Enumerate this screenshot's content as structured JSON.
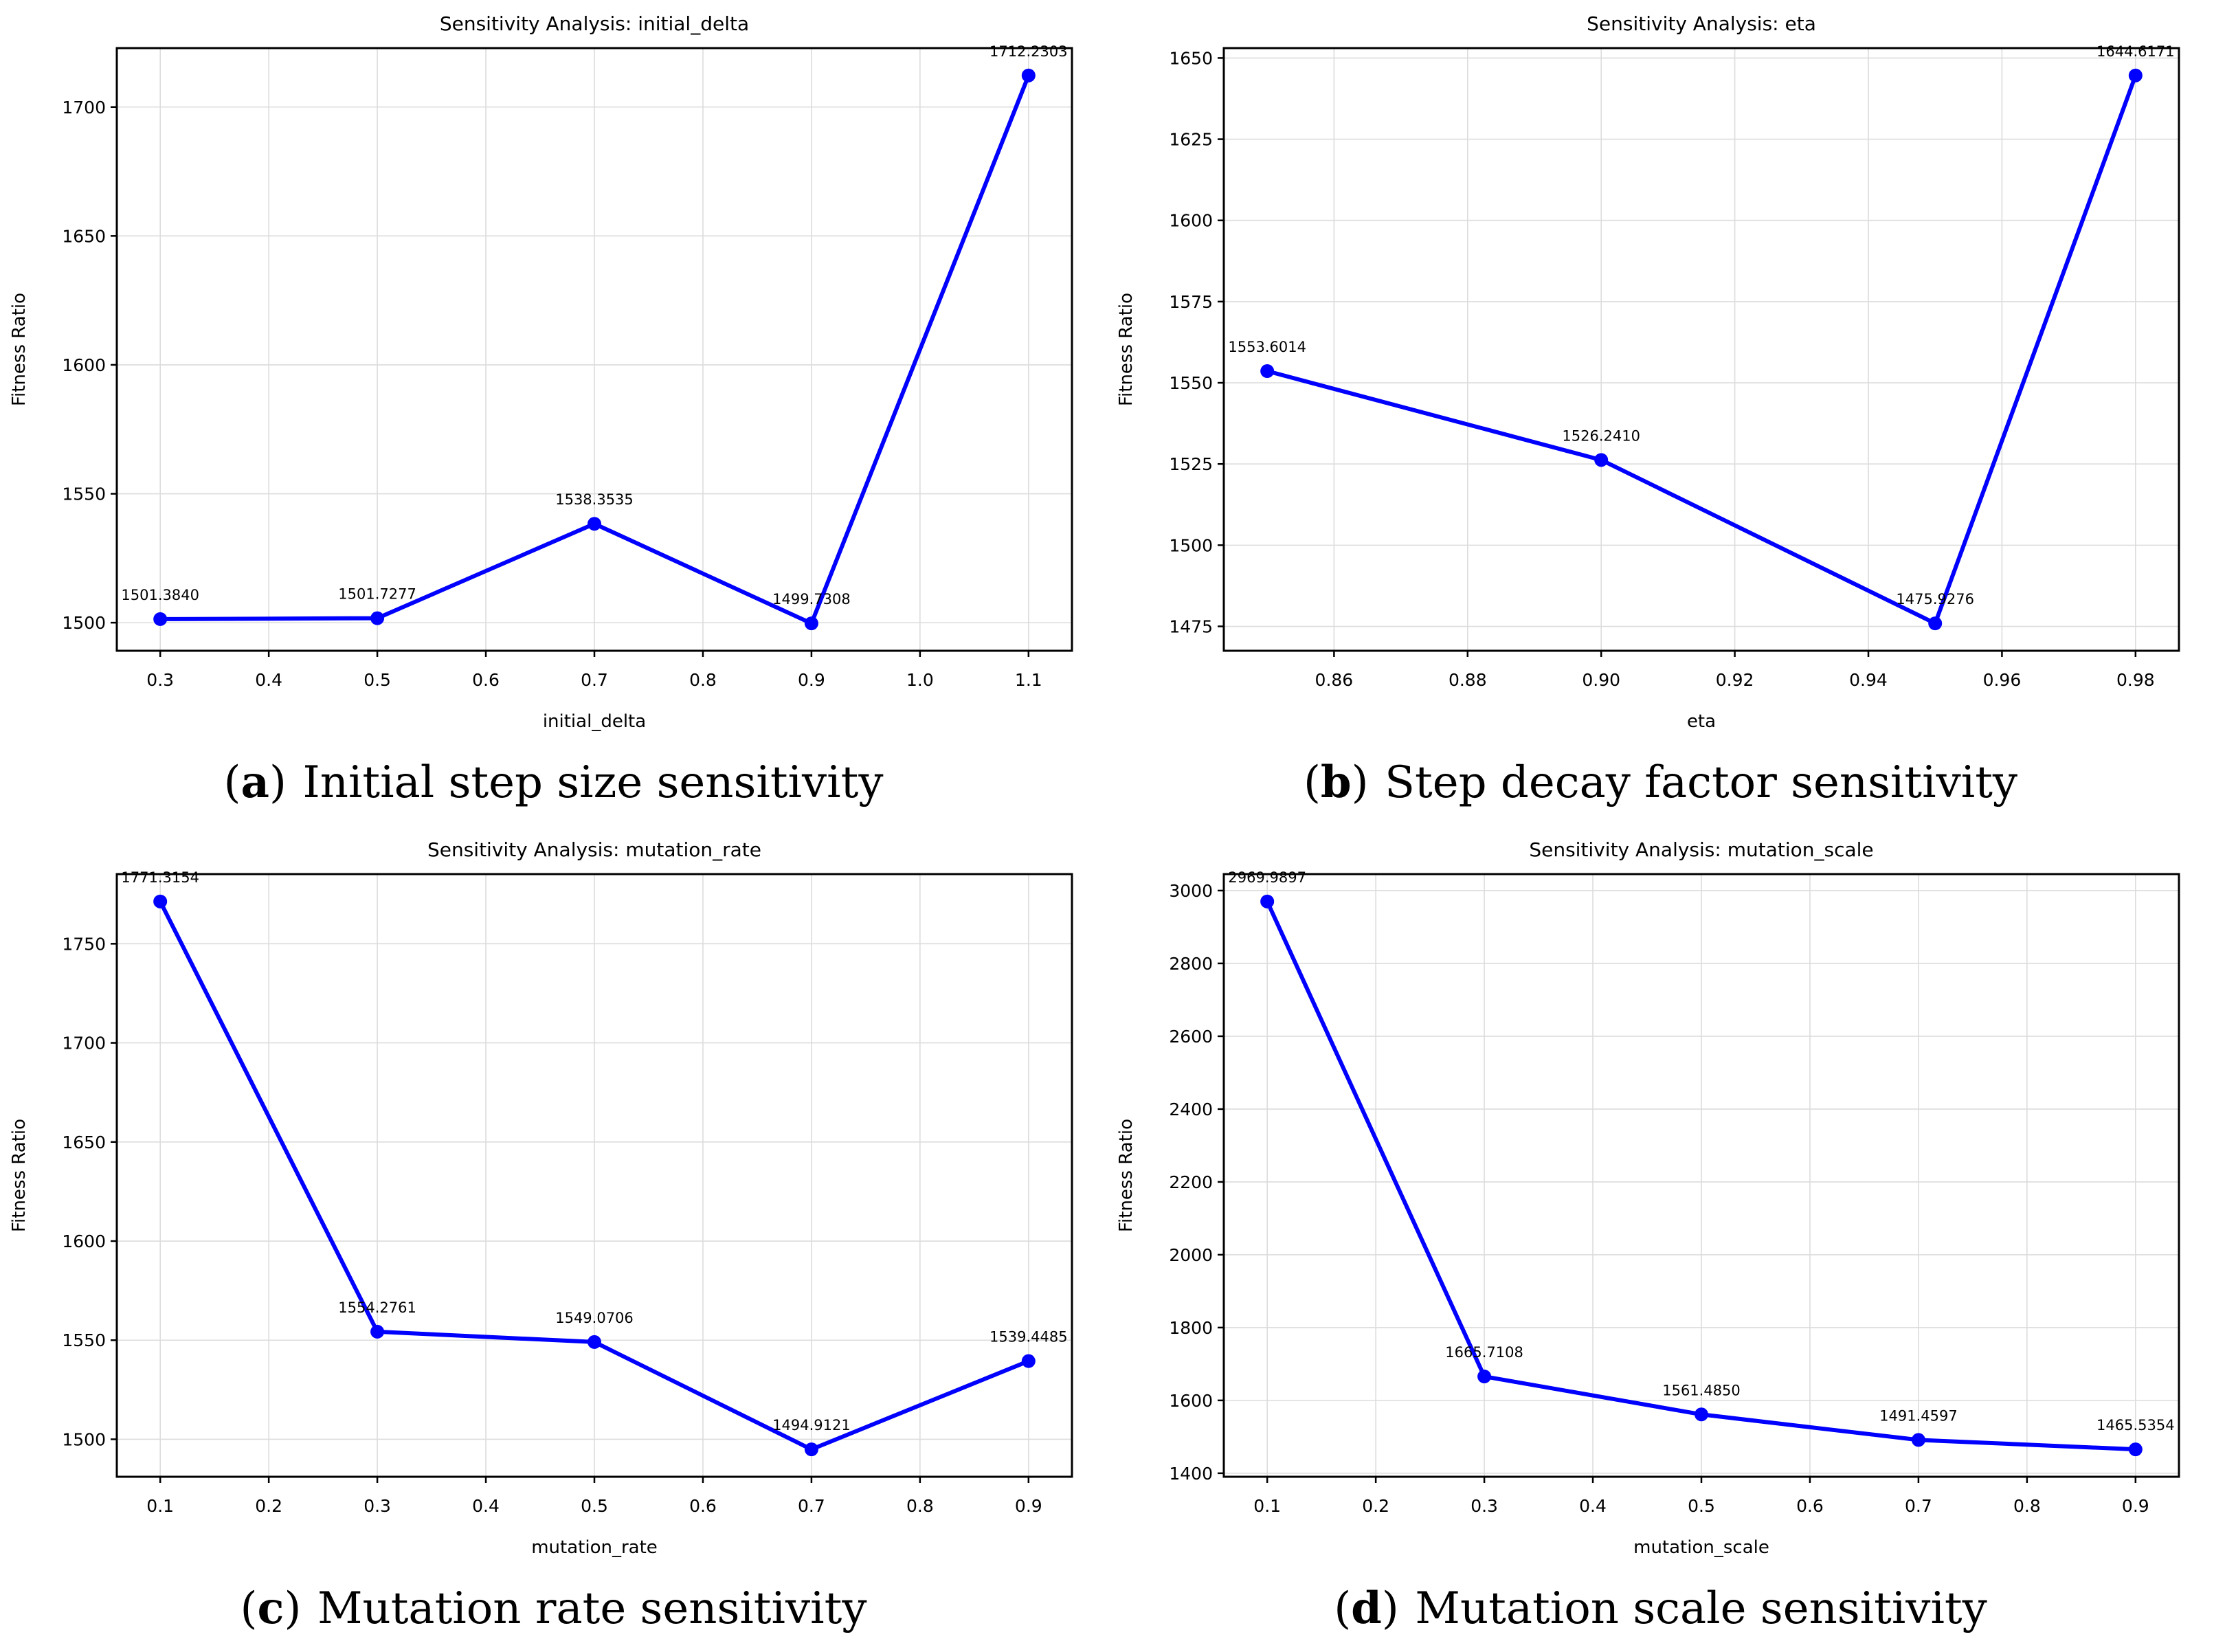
{
  "style": {
    "accent_color": "#0000ff",
    "grid_color": "#dcdcdc",
    "axis_color": "#000000",
    "text_color": "#000000",
    "background": "#ffffff"
  },
  "chart_data": [
    {
      "type": "line",
      "title": "Sensitivity Analysis: initial_delta",
      "xlabel": "initial_delta",
      "ylabel": "Fitness Ratio",
      "x": [
        0.3,
        0.5,
        0.7,
        0.9,
        1.1
      ],
      "values": [
        1501.384,
        1501.7277,
        1538.3535,
        1499.7308,
        1712.2303
      ],
      "point_labels": [
        "1501.3840",
        "1501.7277",
        "1538.3535",
        "1499.7308",
        "1712.2303"
      ],
      "xticks": [
        0.3,
        0.4,
        0.5,
        0.6,
        0.7,
        0.8,
        0.9,
        1.0,
        1.1
      ],
      "xtick_labels": [
        "0.3",
        "0.4",
        "0.5",
        "0.6",
        "0.7",
        "0.8",
        "0.9",
        "1.0",
        "1.1"
      ],
      "yticks": [
        1500,
        1550,
        1600,
        1650,
        1700
      ],
      "ytick_labels": [
        "1500",
        "1550",
        "1600",
        "1650",
        "1700"
      ],
      "xlim": [
        0.26,
        1.14
      ],
      "ylim": [
        1489.105,
        1722.856
      ],
      "grid": true,
      "legend": "none",
      "caption_open": "(",
      "caption_letter": "a",
      "caption_close": ")",
      "caption_text": " Initial step size sensitivity"
    },
    {
      "type": "line",
      "title": "Sensitivity Analysis: eta",
      "xlabel": "eta",
      "ylabel": "Fitness Ratio",
      "x": [
        0.85,
        0.9,
        0.95,
        0.98
      ],
      "values": [
        1553.6014,
        1526.241,
        1475.9276,
        1644.6171
      ],
      "point_labels": [
        "1553.6014",
        "1526.2410",
        "1475.9276",
        "1644.6171"
      ],
      "xticks": [
        0.86,
        0.88,
        0.9,
        0.92,
        0.94,
        0.96,
        0.98
      ],
      "xtick_labels": [
        "0.86",
        "0.88",
        "0.90",
        "0.92",
        "0.94",
        "0.96",
        "0.98"
      ],
      "yticks": [
        1475,
        1500,
        1525,
        1550,
        1575,
        1600,
        1625,
        1650
      ],
      "ytick_labels": [
        "1475",
        "1500",
        "1525",
        "1550",
        "1575",
        "1600",
        "1625",
        "1650"
      ],
      "xlim": [
        0.8435,
        0.9865
      ],
      "ylim": [
        1467.493,
        1653.051
      ],
      "grid": true,
      "legend": "none",
      "caption_open": "(",
      "caption_letter": "b",
      "caption_close": ")",
      "caption_text": " Step decay factor sensitivity"
    },
    {
      "type": "line",
      "title": "Sensitivity Analysis: mutation_rate",
      "xlabel": "mutation_rate",
      "ylabel": "Fitness Ratio",
      "x": [
        0.1,
        0.3,
        0.5,
        0.7,
        0.9
      ],
      "values": [
        1771.3154,
        1554.2761,
        1549.0706,
        1494.9121,
        1539.4485
      ],
      "point_labels": [
        "1771.3154",
        "1554.2761",
        "1549.0706",
        "1494.9121",
        "1539.4485"
      ],
      "xticks": [
        0.1,
        0.2,
        0.3,
        0.4,
        0.5,
        0.6,
        0.7,
        0.8,
        0.9
      ],
      "xtick_labels": [
        "0.1",
        "0.2",
        "0.3",
        "0.4",
        "0.5",
        "0.6",
        "0.7",
        "0.8",
        "0.9"
      ],
      "yticks": [
        1500,
        1550,
        1600,
        1650,
        1700,
        1750
      ],
      "ytick_labels": [
        "1500",
        "1550",
        "1600",
        "1650",
        "1700",
        "1750"
      ],
      "xlim": [
        0.06,
        0.94
      ],
      "ylim": [
        1481.092,
        1785.136
      ],
      "grid": true,
      "legend": "none",
      "caption_open": "(",
      "caption_letter": "c",
      "caption_close": ")",
      "caption_text": " Mutation rate sensitivity"
    },
    {
      "type": "line",
      "title": "Sensitivity Analysis: mutation_scale",
      "xlabel": "mutation_scale",
      "ylabel": "Fitness Ratio",
      "x": [
        0.1,
        0.3,
        0.5,
        0.7,
        0.9
      ],
      "values": [
        2969.9897,
        1665.7108,
        1561.485,
        1491.4597,
        1465.5354
      ],
      "point_labels": [
        "2969.9897",
        "1665.7108",
        "1561.4850",
        "1491.4597",
        "1465.5354"
      ],
      "xticks": [
        0.1,
        0.2,
        0.3,
        0.4,
        0.5,
        0.6,
        0.7,
        0.8,
        0.9
      ],
      "xtick_labels": [
        "0.1",
        "0.2",
        "0.3",
        "0.4",
        "0.5",
        "0.6",
        "0.7",
        "0.8",
        "0.9"
      ],
      "yticks": [
        1400,
        1600,
        1800,
        2000,
        2200,
        2400,
        2600,
        2800,
        3000
      ],
      "ytick_labels": [
        "1400",
        "1600",
        "1800",
        "2000",
        "2200",
        "2400",
        "2600",
        "2800",
        "3000"
      ],
      "xlim": [
        0.06,
        0.94
      ],
      "ylim": [
        1390.313,
        3045.212
      ],
      "grid": true,
      "legend": "none",
      "caption_open": "(",
      "caption_letter": "d",
      "caption_close": ")",
      "caption_text": " Mutation scale sensitivity"
    }
  ]
}
